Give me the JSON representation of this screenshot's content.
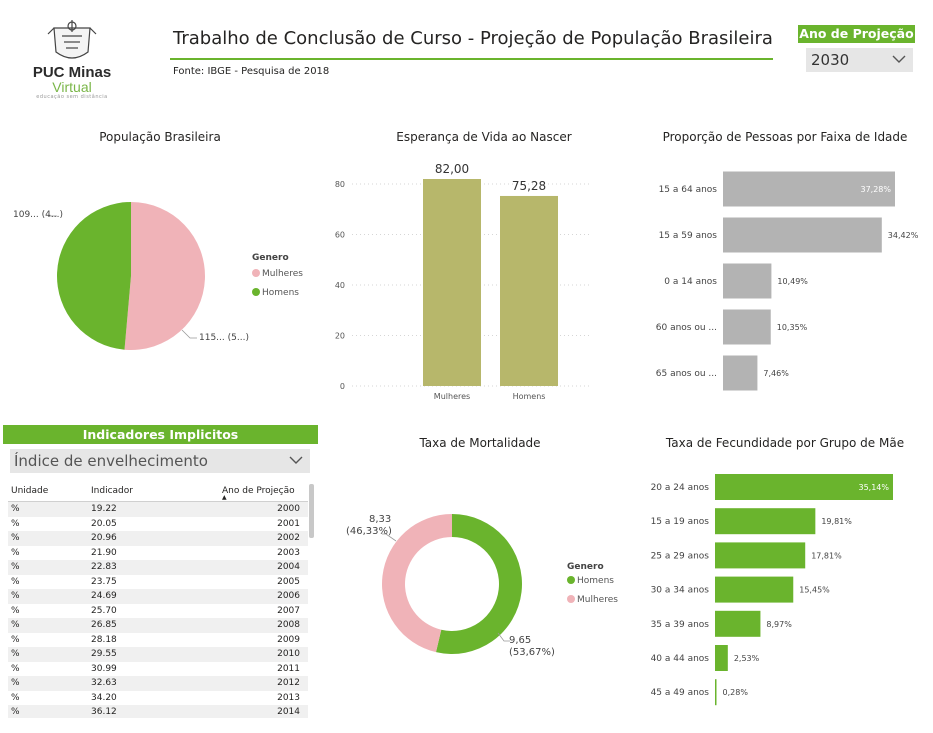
{
  "logo": {
    "name": "PUC Minas",
    "sub": "Virtual",
    "tagline": "educação sem distância"
  },
  "header": {
    "title": "Trabalho de Conclusão de Curso - Projeção de População Brasileira",
    "source": "Fonte: IBGE - Pesquisa de 2018"
  },
  "projection": {
    "label": "Ano de Projeção",
    "value": "2030"
  },
  "colors": {
    "green": "#6ab42d",
    "pink": "#f0b3b8",
    "olive": "#b7b76b",
    "gray": "#b3b3b3"
  },
  "population": {
    "title": "População Brasileira",
    "legend_title": "Genero",
    "legend": [
      "Mulheres",
      "Homens"
    ],
    "label_men": "109... (4...)",
    "label_women": "115... (5...)"
  },
  "life": {
    "title": "Esperança de Vida ao Nascer"
  },
  "age": {
    "title": "Proporção de Pessoas por Faixa de Idade"
  },
  "mortality": {
    "title": "Taxa de Mortalidade",
    "legend_title": "Genero",
    "legend": [
      "Homens",
      "Mulheres"
    ],
    "label_women_value": "8,33",
    "label_women_pct": "(46,33%)",
    "label_men_value": "9,65",
    "label_men_pct": "(53,67%)"
  },
  "fertility": {
    "title": "Taxa de Fecundidade por Grupo de Mãe"
  },
  "indicators": {
    "title": "Indicadores Implicitos",
    "selected": "Índice de envelhecimento",
    "columns": [
      "Unidade",
      "Indicador",
      "Ano de Projeção"
    ],
    "rows": [
      [
        "%",
        "19.22",
        "2000"
      ],
      [
        "%",
        "20.05",
        "2001"
      ],
      [
        "%",
        "20.96",
        "2002"
      ],
      [
        "%",
        "21.90",
        "2003"
      ],
      [
        "%",
        "22.83",
        "2004"
      ],
      [
        "%",
        "23.75",
        "2005"
      ],
      [
        "%",
        "24.69",
        "2006"
      ],
      [
        "%",
        "25.70",
        "2007"
      ],
      [
        "%",
        "26.85",
        "2008"
      ],
      [
        "%",
        "28.18",
        "2009"
      ],
      [
        "%",
        "29.55",
        "2010"
      ],
      [
        "%",
        "30.99",
        "2011"
      ],
      [
        "%",
        "32.63",
        "2012"
      ],
      [
        "%",
        "34.20",
        "2013"
      ],
      [
        "%",
        "36.12",
        "2014"
      ]
    ]
  },
  "chart_data": [
    {
      "type": "pie",
      "title": "População Brasileira",
      "categories": [
        "Mulheres",
        "Homens"
      ],
      "values": [
        51.4,
        48.6
      ],
      "legend": "right"
    },
    {
      "type": "bar",
      "title": "Esperança de Vida ao Nascer",
      "categories": [
        "Mulheres",
        "Homens"
      ],
      "values": [
        82.0,
        75.28
      ],
      "data_labels": [
        "82,00",
        "75,28"
      ],
      "yticks": [
        "0",
        "20",
        "40",
        "60",
        "80"
      ],
      "ylim": [
        0,
        82
      ],
      "grid": true
    },
    {
      "type": "bar",
      "orientation": "horizontal",
      "title": "Proporção de Pessoas por Faixa de Idade",
      "categories": [
        "15 a 64 anos",
        "15 a 59 anos",
        "0 a 14 anos",
        "60 anos ou ...",
        "65 anos ou ..."
      ],
      "values": [
        37.28,
        34.42,
        10.49,
        10.35,
        7.46
      ],
      "data_labels": [
        "37,28%",
        "34,42%",
        "10,49%",
        "10,35%",
        "7,46%"
      ]
    },
    {
      "type": "pie",
      "donut": true,
      "title": "Taxa de Mortalidade",
      "categories": [
        "Homens",
        "Mulheres"
      ],
      "values": [
        9.65,
        8.33
      ],
      "legend": "right"
    },
    {
      "type": "bar",
      "orientation": "horizontal",
      "title": "Taxa de Fecundidade por Grupo de Mãe",
      "categories": [
        "20 a 24 anos",
        "15 a 19 anos",
        "25 a 29 anos",
        "30 a 34 anos",
        "35 a 39 anos",
        "40 a 44 anos",
        "45 a 49 anos"
      ],
      "values": [
        35.14,
        19.81,
        17.81,
        15.45,
        8.97,
        2.53,
        0.28
      ],
      "data_labels": [
        "35,14%",
        "19,81%",
        "17,81%",
        "15,45%",
        "8,97%",
        "2,53%",
        "0,28%"
      ]
    }
  ]
}
